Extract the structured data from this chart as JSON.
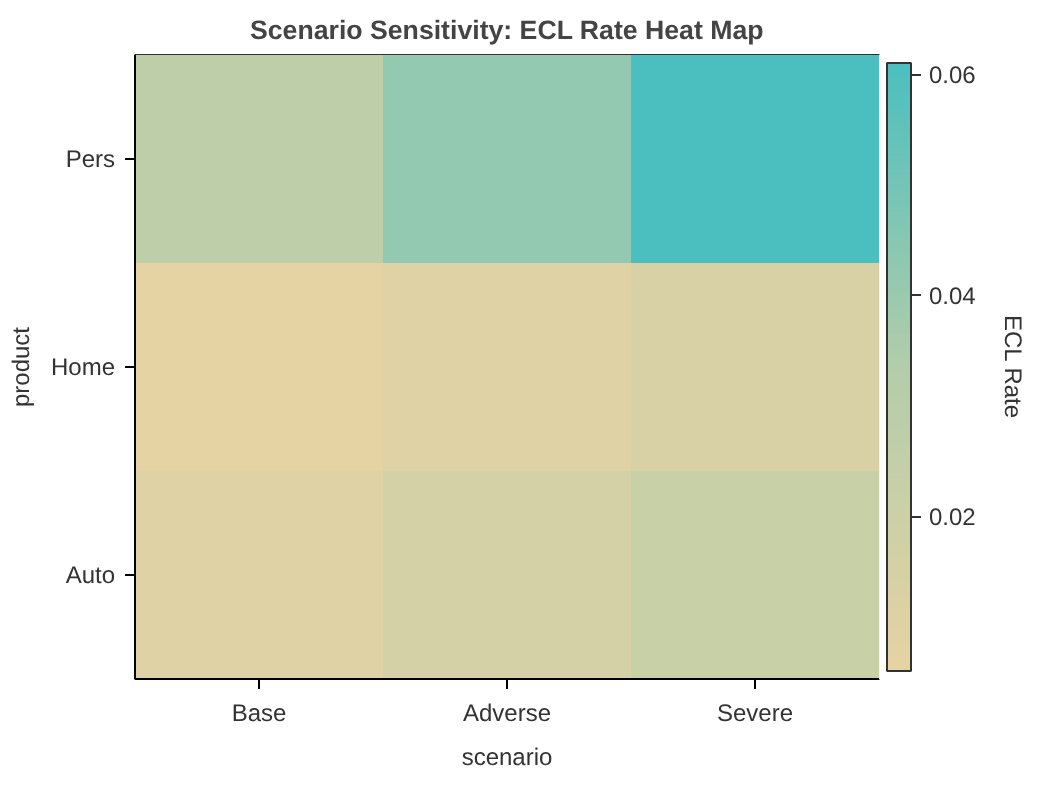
{
  "chart_data": {
    "type": "heatmap",
    "title": "Scenario Sensitivity: ECL Rate Heat Map",
    "xlabel": "scenario",
    "ylabel": "product",
    "clabel": "ECL Rate",
    "categories": [
      "Base",
      "Adverse",
      "Severe"
    ],
    "y_categories": [
      "Pers",
      "Home",
      "Auto"
    ],
    "cells": [
      [
        0.028,
        0.042,
        0.061
      ],
      [
        0.006,
        0.01,
        0.014
      ],
      [
        0.01,
        0.016,
        0.022
      ]
    ],
    "colors": [
      "#e6d3a3",
      "#b3cdaa",
      "#4bbfbf"
    ],
    "clim": [
      0.006,
      0.061
    ],
    "cticks": [
      0.02,
      0.04,
      0.06
    ]
  }
}
